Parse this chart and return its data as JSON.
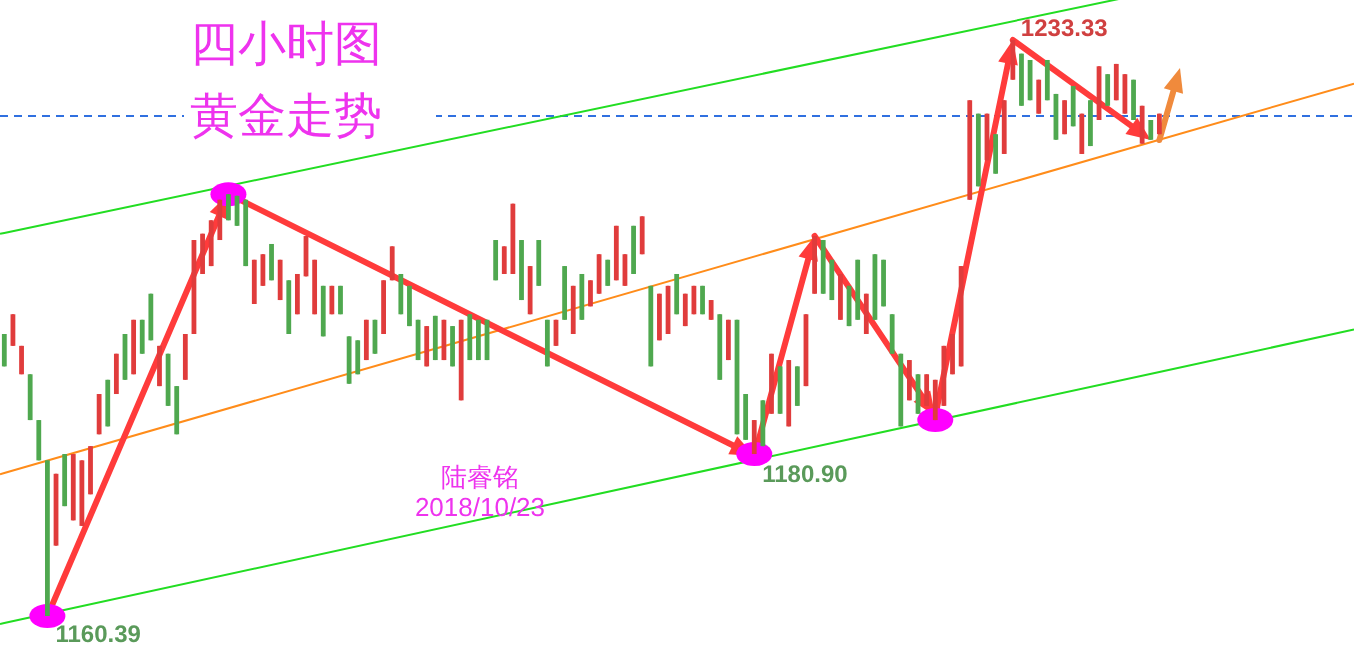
{
  "chart_data": {
    "type": "candlestick",
    "title": "四小时图",
    "subtitle": "黄金走势",
    "categories": [
      null,
      null,
      null,
      null,
      null,
      null,
      null,
      null,
      null,
      null,
      null,
      null,
      null,
      null,
      null,
      null,
      null,
      null,
      null,
      null,
      null,
      null,
      null,
      null,
      null,
      null,
      null,
      null,
      null,
      null,
      null,
      null,
      null,
      null,
      null,
      null,
      null,
      null,
      null,
      null,
      null,
      null,
      null,
      null,
      null,
      null,
      null,
      null,
      null,
      null,
      null,
      null,
      null,
      null,
      null,
      null,
      null,
      null,
      null,
      null,
      null,
      null,
      null,
      null,
      null,
      null,
      null,
      null,
      null,
      null,
      null,
      null,
      null,
      null,
      null,
      null,
      null,
      null,
      null,
      null,
      null,
      null,
      null,
      null,
      null,
      null,
      null,
      null,
      null,
      null,
      null,
      null,
      null,
      null,
      null,
      null,
      null,
      null,
      null,
      null,
      null,
      null,
      null,
      null,
      null,
      null,
      null,
      null,
      null,
      null,
      null,
      null,
      null,
      null,
      null,
      null,
      null,
      null,
      null,
      null,
      null,
      null,
      null,
      null,
      null,
      null,
      null,
      null,
      null,
      null,
      null,
      null,
      null,
      null,
      null
    ],
    "ohlc": [
      [
        1196.1,
        1196.1,
        1192.0,
        1192.0
      ],
      [
        1194.6,
        1198.6,
        1194.6,
        1198.6
      ],
      [
        1191.0,
        1194.6,
        1191.0,
        1194.6
      ],
      [
        1191.0,
        1191.0,
        1185.2,
        1185.2
      ],
      [
        1185.2,
        1185.2,
        1180.1,
        1180.1
      ],
      [
        1180.1,
        1180.1,
        1160.39,
        1160.39
      ],
      [
        1169.3,
        1178.4,
        1169.3,
        1178.4
      ],
      [
        1180.9,
        1180.9,
        1174.3,
        1174.3
      ],
      [
        1172.5,
        1180.9,
        1172.5,
        1180.9
      ],
      [
        1171.8,
        1180.1,
        1171.8,
        1180.1
      ],
      [
        1175.8,
        1181.9,
        1175.8,
        1181.9
      ],
      [
        1183.4,
        1188.5,
        1183.4,
        1188.5
      ],
      [
        1190.3,
        1190.3,
        1184.4,
        1184.4
      ],
      [
        1188.5,
        1193.6,
        1188.5,
        1193.6
      ],
      [
        1196.1,
        1196.1,
        1190.3,
        1190.3
      ],
      [
        1191.0,
        1197.9,
        1191.0,
        1197.9
      ],
      [
        1197.9,
        1197.9,
        1193.6,
        1193.6
      ],
      [
        1201.2,
        1201.2,
        1195.3,
        1195.3
      ],
      [
        1189.5,
        1194.6,
        1189.5,
        1194.6
      ],
      [
        1193.6,
        1193.6,
        1187.0,
        1187.0
      ],
      [
        1189.5,
        1189.5,
        1183.4,
        1183.4
      ],
      [
        1190.3,
        1196.1,
        1190.3,
        1196.1
      ],
      [
        1196.1,
        1208.0,
        1196.1,
        1208.0
      ],
      [
        1203.7,
        1208.8,
        1203.7,
        1208.8
      ],
      [
        1204.7,
        1210.5,
        1204.7,
        1210.5
      ],
      [
        1208.0,
        1213.1,
        1208.0,
        1213.1
      ],
      [
        1213.8,
        1213.8,
        1210.5,
        1210.5
      ],
      [
        1213.6,
        1213.6,
        1209.8,
        1209.8
      ],
      [
        1213.1,
        1213.1,
        1204.7,
        1204.7
      ],
      [
        1199.9,
        1205.5,
        1199.9,
        1205.5
      ],
      [
        1202.2,
        1206.2,
        1202.2,
        1206.2
      ],
      [
        1207.5,
        1207.5,
        1202.9,
        1202.9
      ],
      [
        1200.4,
        1205.5,
        1200.4,
        1205.5
      ],
      [
        1202.9,
        1202.9,
        1196.1,
        1196.1
      ],
      [
        1198.6,
        1203.7,
        1198.6,
        1203.7
      ],
      [
        1203.4,
        1208.5,
        1203.4,
        1208.5
      ],
      [
        1198.6,
        1205.5,
        1198.6,
        1205.5
      ],
      [
        1202.2,
        1202.2,
        1195.8,
        1195.8
      ],
      [
        1198.6,
        1202.2,
        1198.6,
        1202.2
      ],
      [
        1202.2,
        1202.2,
        1198.6,
        1198.6
      ],
      [
        1195.8,
        1195.8,
        1189.8,
        1189.8
      ],
      [
        1195.3,
        1195.3,
        1191.0,
        1191.0
      ],
      [
        1192.8,
        1197.9,
        1192.8,
        1197.9
      ],
      [
        1197.9,
        1197.9,
        1193.6,
        1193.6
      ],
      [
        1196.1,
        1202.9,
        1196.1,
        1202.9
      ],
      [
        1202.9,
        1207.2,
        1202.9,
        1207.2
      ],
      [
        1203.7,
        1203.7,
        1198.6,
        1198.6
      ],
      [
        1202.2,
        1202.2,
        1197.1,
        1197.1
      ],
      [
        1197.9,
        1197.9,
        1192.8,
        1192.8
      ],
      [
        1192.0,
        1197.1,
        1192.0,
        1197.1
      ],
      [
        1198.4,
        1198.4,
        1192.8,
        1192.8
      ],
      [
        1192.8,
        1197.9,
        1192.8,
        1197.9
      ],
      [
        1197.1,
        1197.1,
        1192.0,
        1192.0
      ],
      [
        1187.7,
        1197.9,
        1187.7,
        1197.9
      ],
      [
        1198.6,
        1198.6,
        1192.8,
        1192.8
      ],
      [
        1197.9,
        1197.9,
        1192.8,
        1192.8
      ],
      [
        1197.9,
        1197.9,
        1192.8,
        1192.8
      ],
      [
        1208.0,
        1208.0,
        1202.9,
        1202.9
      ],
      [
        1203.7,
        1207.2,
        1203.7,
        1207.2
      ],
      [
        1203.7,
        1212.6,
        1203.7,
        1212.6
      ],
      [
        1208.0,
        1208.0,
        1200.4,
        1200.4
      ],
      [
        1198.6,
        1204.7,
        1198.6,
        1204.7
      ],
      [
        1208.0,
        1208.0,
        1202.2,
        1202.2
      ],
      [
        1197.9,
        1197.9,
        1192.0,
        1192.0
      ],
      [
        1194.6,
        1197.9,
        1194.6,
        1197.9
      ],
      [
        1204.7,
        1204.7,
        1197.9,
        1197.9
      ],
      [
        1196.1,
        1202.2,
        1196.1,
        1202.2
      ],
      [
        1203.7,
        1203.7,
        1197.9,
        1197.9
      ],
      [
        1199.6,
        1202.9,
        1199.6,
        1202.9
      ],
      [
        1201.2,
        1206.2,
        1201.2,
        1206.2
      ],
      [
        1205.5,
        1205.5,
        1202.2,
        1202.2
      ],
      [
        1202.9,
        1209.8,
        1202.9,
        1209.8
      ],
      [
        1202.2,
        1206.2,
        1202.2,
        1206.2
      ],
      [
        1209.8,
        1209.8,
        1203.7,
        1203.7
      ],
      [
        1206.2,
        1211.0,
        1206.2,
        1211.0
      ],
      [
        1202.2,
        1202.2,
        1192.0,
        1192.0
      ],
      [
        1195.3,
        1201.2,
        1195.3,
        1201.2
      ],
      [
        1196.1,
        1202.2,
        1196.1,
        1202.2
      ],
      [
        1203.7,
        1203.7,
        1198.6,
        1198.6
      ],
      [
        1197.1,
        1201.2,
        1197.1,
        1201.2
      ],
      [
        1198.6,
        1202.2,
        1198.6,
        1202.2
      ],
      [
        1202.2,
        1202.2,
        1198.6,
        1198.6
      ],
      [
        1197.9,
        1200.4,
        1197.9,
        1200.4
      ],
      [
        1198.6,
        1198.6,
        1190.3,
        1190.3
      ],
      [
        1192.8,
        1197.9,
        1192.8,
        1197.9
      ],
      [
        1197.9,
        1197.9,
        1183.4,
        1183.4
      ],
      [
        1188.5,
        1188.5,
        1182.7,
        1182.7
      ],
      [
        1180.9,
        1185.2,
        1180.9,
        1185.2
      ],
      [
        1187.7,
        1187.7,
        1181.9,
        1181.9
      ],
      [
        1186.0,
        1193.6,
        1186.0,
        1193.6
      ],
      [
        1192.0,
        1192.0,
        1186.0,
        1186.0
      ],
      [
        1184.4,
        1192.8,
        1184.4,
        1192.8
      ],
      [
        1192.0,
        1192.0,
        1187.0,
        1187.0
      ],
      [
        1189.5,
        1198.6,
        1189.5,
        1198.6
      ],
      [
        1201.2,
        1208.5,
        1201.2,
        1208.5
      ],
      [
        1208.0,
        1208.0,
        1201.2,
        1201.2
      ],
      [
        1205.5,
        1205.5,
        1200.4,
        1200.4
      ],
      [
        1197.9,
        1203.7,
        1197.9,
        1203.7
      ],
      [
        1202.2,
        1202.2,
        1197.1,
        1197.1
      ],
      [
        1205.5,
        1205.5,
        1197.9,
        1197.9
      ],
      [
        1196.1,
        1201.2,
        1196.1,
        1201.2
      ],
      [
        1206.2,
        1206.2,
        1197.9,
        1197.9
      ],
      [
        1205.5,
        1205.5,
        1199.6,
        1199.6
      ],
      [
        1198.6,
        1198.6,
        1193.6,
        1193.6
      ],
      [
        1193.6,
        1193.6,
        1184.4,
        1184.4
      ],
      [
        1187.7,
        1192.8,
        1187.7,
        1192.8
      ],
      [
        1191.0,
        1191.0,
        1186.0,
        1186.0
      ],
      [
        1187.0,
        1191.0,
        1187.0,
        1191.0
      ],
      [
        1185.2,
        1190.3,
        1185.2,
        1190.3
      ],
      [
        1187.0,
        1194.6,
        1187.0,
        1194.6
      ],
      [
        1191.0,
        1196.1,
        1191.0,
        1196.1
      ],
      [
        1192.0,
        1204.7,
        1192.0,
        1204.7
      ],
      [
        1213.1,
        1225.7,
        1213.1,
        1225.7
      ],
      [
        1224.0,
        1224.0,
        1214.8,
        1214.8
      ],
      [
        1218.1,
        1224.0,
        1218.1,
        1224.0
      ],
      [
        1221.4,
        1221.4,
        1216.4,
        1216.4
      ],
      [
        1218.9,
        1225.7,
        1218.9,
        1225.7
      ],
      [
        1228.3,
        1233.33,
        1228.3,
        1233.33
      ],
      [
        1231.6,
        1231.6,
        1225.0,
        1225.0
      ],
      [
        1230.8,
        1230.8,
        1225.7,
        1225.7
      ],
      [
        1224.0,
        1228.3,
        1224.0,
        1228.3
      ],
      [
        1230.8,
        1230.8,
        1225.7,
        1225.7
      ],
      [
        1226.5,
        1226.5,
        1220.7,
        1220.7
      ],
      [
        1221.4,
        1225.7,
        1221.4,
        1225.7
      ],
      [
        1227.5,
        1227.5,
        1222.4,
        1222.4
      ],
      [
        1218.9,
        1224.0,
        1218.9,
        1224.0
      ],
      [
        1225.7,
        1225.7,
        1219.9,
        1219.9
      ],
      [
        1223.2,
        1230.0,
        1223.2,
        1230.0
      ],
      [
        1229.0,
        1229.0,
        1225.0,
        1225.0
      ],
      [
        1225.7,
        1230.3,
        1225.7,
        1230.3
      ],
      [
        1224.0,
        1229.0,
        1224.0,
        1229.0
      ],
      [
        1228.3,
        1228.3,
        1223.2,
        1223.2
      ],
      [
        1220.2,
        1225.0,
        1220.2,
        1225.0
      ],
      [
        1223.2,
        1223.2,
        1220.7,
        1220.7
      ],
      [
        1221.4,
        1224.0,
        1221.4,
        1224.0
      ]
    ],
    "series": [
      {
        "type": "line",
        "color": "#22dd22",
        "values": [
          1208.9,
          null,
          null,
          null,
          null,
          null,
          null,
          null,
          null,
          null,
          null,
          null,
          null,
          null,
          null,
          null,
          null,
          null,
          null,
          null,
          null,
          null,
          null,
          null,
          null,
          null,
          null,
          null,
          null,
          null,
          null,
          null,
          null,
          null,
          null,
          null,
          null,
          null,
          null,
          null,
          null,
          null,
          null,
          null,
          null,
          null,
          null,
          null,
          null,
          null,
          null,
          null,
          null,
          null,
          null,
          null,
          null,
          null,
          null,
          null,
          null,
          null,
          null,
          null,
          null,
          null,
          null,
          null,
          null,
          null,
          null,
          null,
          null,
          null,
          null,
          null,
          null,
          null,
          null,
          null,
          null,
          null,
          null,
          null,
          null,
          null,
          null,
          null,
          null,
          null,
          null,
          null,
          null,
          null,
          null,
          null,
          null,
          null,
          null,
          null,
          null,
          null,
          null,
          null,
          null,
          null,
          null,
          null,
          null,
          null,
          null,
          null,
          null,
          null,
          null,
          null,
          null,
          null,
          null,
          null,
          null,
          null,
          null,
          null,
          null,
          null,
          null,
          null,
          null,
          null,
          null,
          null,
          null,
          null,
          1239.6
        ]
      },
      {
        "type": "line",
        "color": "#ff8c1a",
        "values": [
          1178.5,
          null,
          null,
          null,
          null,
          null,
          null,
          null,
          null,
          null,
          null,
          null,
          null,
          null,
          null,
          null,
          null,
          null,
          null,
          null,
          null,
          null,
          null,
          null,
          null,
          null,
          null,
          null,
          null,
          null,
          null,
          null,
          null,
          null,
          null,
          null,
          null,
          null,
          null,
          null,
          null,
          null,
          null,
          null,
          null,
          null,
          null,
          null,
          null,
          null,
          null,
          null,
          null,
          null,
          null,
          null,
          null,
          null,
          null,
          null,
          null,
          null,
          null,
          null,
          null,
          null,
          null,
          null,
          null,
          null,
          null,
          null,
          null,
          null,
          null,
          null,
          null,
          null,
          null,
          null,
          null,
          null,
          null,
          null,
          null,
          null,
          null,
          null,
          null,
          null,
          null,
          null,
          null,
          null,
          null,
          null,
          null,
          null,
          null,
          null,
          null,
          null,
          null,
          null,
          null,
          null,
          null,
          null,
          null,
          null,
          null,
          null,
          null,
          null,
          null,
          null,
          null,
          null,
          null,
          null,
          null,
          null,
          null,
          null,
          null,
          null,
          null,
          null,
          null,
          null,
          null,
          null,
          null,
          null,
          1220.7
        ]
      },
      {
        "type": "line",
        "color": "#22dd22",
        "values": [
          1159.5,
          null,
          null,
          null,
          null,
          null,
          null,
          null,
          null,
          null,
          null,
          null,
          null,
          null,
          null,
          null,
          null,
          null,
          null,
          null,
          null,
          null,
          null,
          null,
          null,
          null,
          null,
          null,
          null,
          null,
          null,
          null,
          null,
          null,
          null,
          null,
          null,
          null,
          null,
          null,
          null,
          null,
          null,
          null,
          null,
          null,
          null,
          null,
          null,
          null,
          null,
          null,
          null,
          null,
          null,
          null,
          null,
          null,
          null,
          null,
          null,
          null,
          null,
          null,
          null,
          null,
          null,
          null,
          null,
          null,
          null,
          null,
          null,
          null,
          null,
          null,
          null,
          null,
          null,
          null,
          null,
          null,
          null,
          null,
          null,
          null,
          null,
          null,
          null,
          null,
          null,
          null,
          null,
          null,
          null,
          null,
          null,
          null,
          null,
          null,
          null,
          null,
          null,
          null,
          null,
          null,
          null,
          null,
          null,
          null,
          null,
          null,
          null,
          null,
          null,
          null,
          null,
          null,
          null,
          null,
          null,
          null,
          null,
          null,
          null,
          null,
          null,
          null,
          null,
          null,
          null,
          null,
          null,
          null,
          1191.3
        ]
      },
      {
        "type": "scatter",
        "color": "#ff00ff",
        "marker": "circle",
        "values": [
          null,
          null,
          null,
          null,
          null,
          1160.4,
          null,
          null,
          null,
          null,
          null,
          null,
          null,
          null,
          null,
          null,
          null,
          null,
          null,
          null,
          null,
          null,
          null,
          null,
          null,
          null,
          1213.8,
          null,
          null,
          null,
          null,
          null,
          null,
          null,
          null,
          null,
          null,
          null,
          null,
          null,
          null,
          null,
          null,
          null,
          null,
          null,
          null,
          null,
          null,
          null,
          null,
          null,
          null,
          null,
          null,
          null,
          null,
          null,
          null,
          null,
          null,
          null,
          null,
          null,
          null,
          null,
          null,
          null,
          null,
          null,
          null,
          null,
          null,
          null,
          null,
          null,
          null,
          null,
          null,
          null,
          null,
          null,
          null,
          null,
          null,
          null,
          null,
          1180.9,
          null,
          null,
          null,
          null,
          null,
          null,
          null,
          null,
          null,
          null,
          null,
          null,
          null,
          null,
          null,
          null,
          null,
          null,
          null,
          null,
          1185.2,
          null,
          null,
          null,
          null,
          null,
          null,
          null,
          null,
          null,
          null,
          null,
          null,
          null,
          null,
          null,
          null,
          null,
          null,
          null,
          null,
          null,
          null,
          null,
          null,
          null,
          null
        ]
      }
    ],
    "ref_lines": [
      {
        "axis": "y",
        "value": 1223.7,
        "color": "#3070e0",
        "line_style": "dashed"
      }
    ],
    "annotations": [
      "1160.39",
      "1180.90",
      "1233.33",
      "陆睿铭",
      "2018/10/23"
    ]
  }
}
